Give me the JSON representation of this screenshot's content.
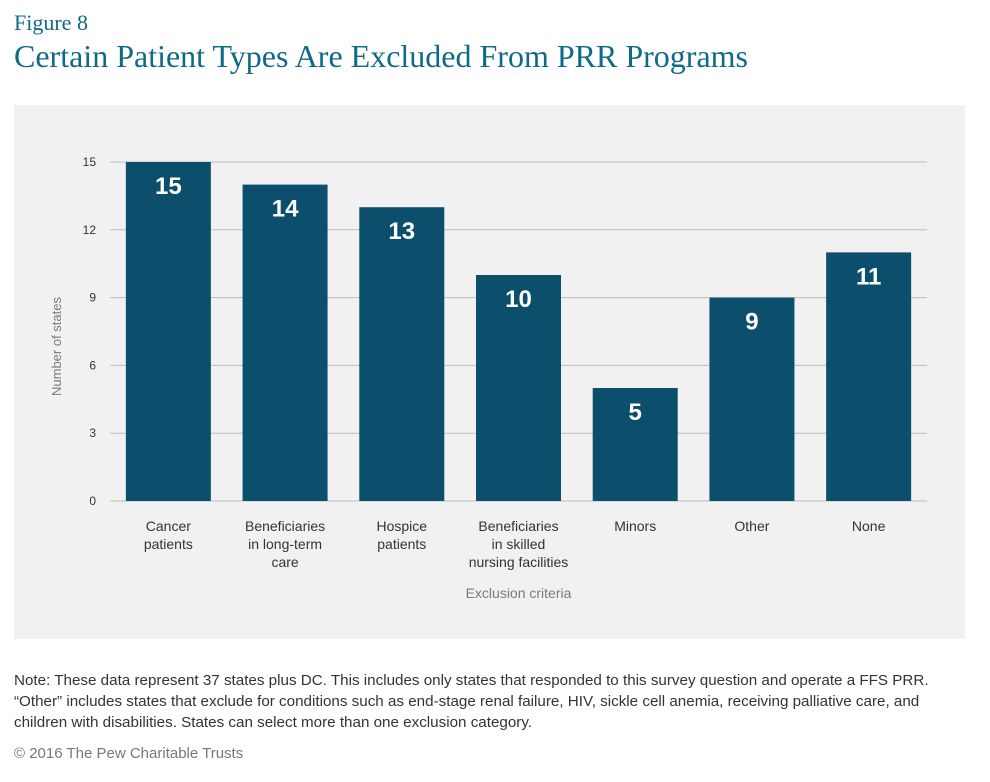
{
  "figure": {
    "label": "Figure 8",
    "title": "Certain Patient Types Are Excluded From PRR Programs"
  },
  "chart_data": {
    "type": "bar",
    "categories": [
      [
        "Cancer",
        "patients"
      ],
      [
        "Beneficiaries",
        "in long-term",
        "care"
      ],
      [
        "Hospice",
        "patients"
      ],
      [
        "Beneficiaries",
        "in skilled",
        "nursing facilities"
      ],
      [
        "Minors"
      ],
      [
        "Other"
      ],
      [
        "None"
      ]
    ],
    "values": [
      15,
      14,
      13,
      10,
      5,
      9,
      11
    ],
    "xlabel": "Exclusion criteria",
    "ylabel": "Number of states",
    "ylim": [
      0,
      15
    ],
    "yticks": [
      0,
      3,
      6,
      9,
      12,
      15
    ],
    "grid": true,
    "data_labels": true,
    "colors": {
      "bar": "#0b4f6c",
      "bar_label": "#ffffff",
      "grid": "#bdbdbd",
      "tick_text": "#333333",
      "axis_title": "#7a7a7a"
    }
  },
  "note": "Note: These data represent 37 states plus DC. This includes only states that responded to this survey question and operate a FFS PRR. “Other” includes states that exclude for conditions such as end-stage renal failure, HIV, sickle cell anemia, receiving palliative care, and children with disabilities. States can select more than one exclusion category.",
  "copyright": "© 2016 The Pew Charitable Trusts"
}
